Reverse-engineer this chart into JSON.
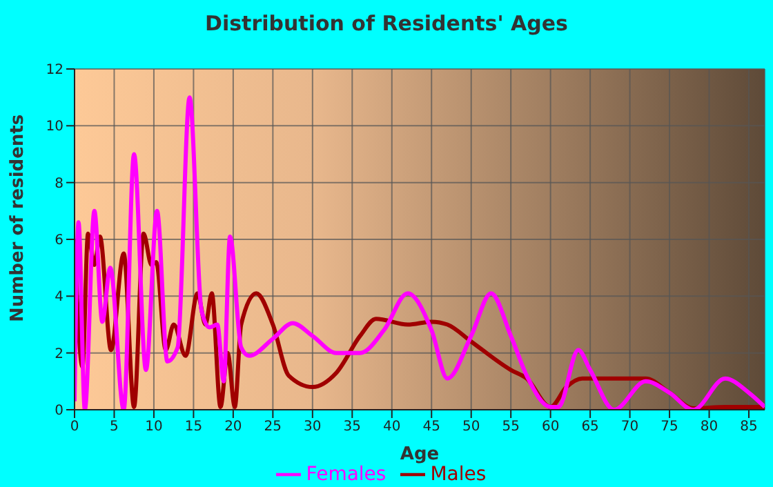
{
  "chart_data": {
    "type": "line",
    "title": "Distribution of Residents' Ages",
    "xlabel": "Age",
    "ylabel": "Number of residents",
    "xlim": [
      0,
      87
    ],
    "xticks": [
      0,
      5,
      10,
      15,
      20,
      25,
      30,
      35,
      40,
      45,
      50,
      55,
      60,
      65,
      70,
      75,
      80,
      85
    ],
    "ylim": [
      0,
      12
    ],
    "yticks": [
      0,
      2,
      4,
      6,
      8,
      10,
      12
    ],
    "grid": true,
    "legend": "bottom",
    "marker": "none",
    "line_style": "solid",
    "series": [
      {
        "name": "Males",
        "color": "#a00000",
        "x": [
          0,
          1,
          1.7,
          2.5,
          3.2,
          4.6,
          6.2,
          7.5,
          8.7,
          9.7,
          10.3,
          11.5,
          12.5,
          14,
          15.5,
          16.5,
          17.3,
          18.4,
          19.3,
          20.2,
          21,
          22.9,
          25,
          27,
          30,
          33,
          36,
          38,
          42,
          45,
          47,
          50,
          55,
          57,
          60,
          62,
          64,
          68,
          72,
          75,
          78,
          82,
          87
        ],
        "values": [
          6,
          1.5,
          6.2,
          5.1,
          6.1,
          2.1,
          5.5,
          0.1,
          6.2,
          5.1,
          5.2,
          2.1,
          3,
          1.9,
          4.1,
          3,
          4.1,
          0.1,
          2,
          0.1,
          3,
          4.1,
          3,
          1.2,
          0.8,
          1.3,
          2.6,
          3.2,
          3,
          3.1,
          3,
          2.4,
          1.4,
          1.1,
          0.1,
          0.8,
          1.1,
          1.1,
          1.1,
          0.6,
          0.05,
          0.1,
          0.1
        ]
      },
      {
        "name": "Females",
        "color": "#ff00ff",
        "x": [
          0,
          0.5,
          1.3,
          2.5,
          3.5,
          4.5,
          6.2,
          7.5,
          9,
          10.4,
          11.7,
          13,
          14.5,
          16,
          17,
          18,
          18.8,
          19.6,
          21,
          22,
          25,
          27.5,
          30,
          33,
          36,
          39,
          42,
          45,
          47,
          50,
          52.5,
          55,
          57,
          60,
          61,
          63.5,
          65,
          68,
          72,
          75,
          78,
          82,
          85,
          87
        ],
        "values": [
          0.3,
          6.6,
          0,
          7,
          3.1,
          5,
          0,
          9,
          1.4,
          7,
          1.7,
          2.2,
          11,
          3.5,
          2.9,
          3,
          1,
          6.1,
          2.2,
          1.9,
          2.5,
          3.05,
          2.6,
          2,
          2,
          2.8,
          4.1,
          2.8,
          1.1,
          2.6,
          4.1,
          2.6,
          1.2,
          0.1,
          0.1,
          2.1,
          1.4,
          0,
          1,
          0.6,
          0,
          1.1,
          0.6,
          0.1
        ]
      }
    ]
  }
}
